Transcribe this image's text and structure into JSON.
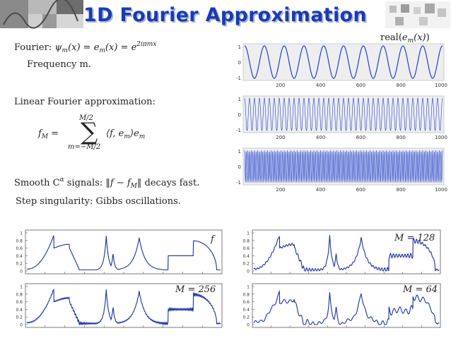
{
  "title": "1D Fourier Approximation",
  "lines": {
    "fourier_prefix": "Fourier:",
    "fourier_formula": "ψm(x) = em(x) = e2iπmx",
    "frequency": "Frequency m.",
    "linear_heading": "Linear Fourier approximation:",
    "sum_lhs": "fM =",
    "sum_upper": "M/2",
    "sum_lower": "m=−M/2",
    "sum_term": "⟨f, em⟩em",
    "smooth": "Smooth Cα signals: ‖f − fM‖ decays fast.",
    "step": "Step singularity: Gibbs oscillations."
  },
  "wave_panel": {
    "label": "real(em(x))",
    "x_ticks": [
      "200",
      "400",
      "600",
      "800",
      "1000"
    ],
    "y_ticks": [
      "1",
      "0",
      "-1"
    ]
  },
  "bottom_panels": [
    {
      "label": "f",
      "type": "original"
    },
    {
      "label": "M = 128",
      "type": "approx"
    },
    {
      "label": "M = 256",
      "type": "approx"
    },
    {
      "label": "M = 64",
      "type": "approx"
    }
  ],
  "bottom_y_ticks": [
    "1",
    "0.8",
    "0.6",
    "0.4",
    "0.2",
    "0"
  ],
  "colors": {
    "title": "#1a3bb0",
    "curve": "#1a2fa8",
    "wave": "#1f3fd0"
  }
}
